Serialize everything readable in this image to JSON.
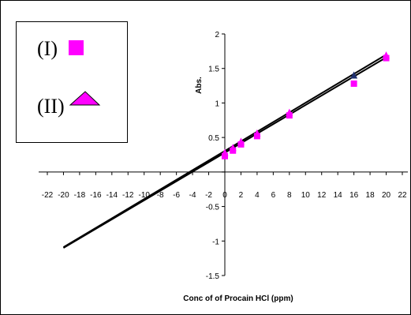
{
  "chart_data": {
    "type": "scatter",
    "xlabel": "Conc of of Procain HCl (ppm)",
    "ylabel": "Abs.",
    "xlim": [
      -22,
      22
    ],
    "ylim": [
      -1.5,
      2
    ],
    "x_ticks": [
      -22,
      -20,
      -18,
      -16,
      -14,
      -12,
      -10,
      -8,
      -6,
      -4,
      -2,
      0,
      2,
      4,
      6,
      8,
      10,
      12,
      14,
      16,
      18,
      20,
      22
    ],
    "y_ticks": [
      -1.5,
      -1,
      -0.5,
      0,
      0.5,
      1,
      1.5,
      2
    ],
    "grid": false,
    "legend_position": "top-left",
    "series": [
      {
        "name": "(I)",
        "marker": "square",
        "color": "#ff00ff",
        "points": [
          [
            0,
            0.23
          ],
          [
            1,
            0.31
          ],
          [
            2,
            0.4
          ],
          [
            4,
            0.52
          ],
          [
            8,
            0.82
          ],
          [
            16,
            1.28
          ],
          [
            20,
            1.65
          ]
        ]
      },
      {
        "name": "(II)",
        "marker": "triangle",
        "color": "#ff00ff",
        "points": [
          [
            0,
            0.28
          ],
          [
            1,
            0.35
          ],
          [
            2,
            0.44
          ],
          [
            4,
            0.56
          ],
          [
            8,
            0.86
          ],
          [
            16,
            1.4
          ],
          [
            20,
            1.69
          ]
        ]
      }
    ],
    "trendlines": [
      {
        "x": [
          -20,
          20
        ],
        "y": [
          -1.1,
          1.66
        ]
      },
      {
        "x": [
          -20,
          20
        ],
        "y": [
          -1.09,
          1.7
        ]
      }
    ],
    "colors": {
      "line": "#000000",
      "triangle_highlight": "#1f2f6e"
    }
  }
}
